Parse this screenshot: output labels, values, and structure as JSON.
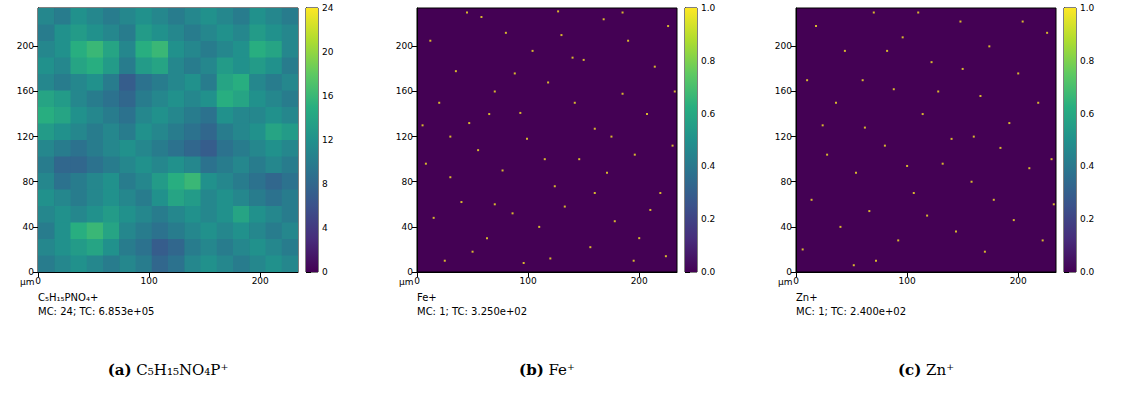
{
  "chart_data": [
    {
      "type": "heatmap",
      "label": "(a)",
      "caption": "C₅H₁₅NO₄P⁺",
      "title": "C₅H₁₅PNO₄+",
      "stats": "MC: 24; TC: 6.853e+05",
      "xlabel": "µm",
      "xlim": [
        0,
        234
      ],
      "ylim": [
        0,
        234
      ],
      "xticks": [
        0,
        100,
        200
      ],
      "yticks": [
        0,
        40,
        80,
        120,
        160,
        200
      ],
      "cells": [
        [
          11,
          10,
          12,
          11,
          10,
          11,
          12,
          11,
          10,
          11,
          12,
          11,
          10,
          12,
          11,
          10
        ],
        [
          10,
          12,
          13,
          12,
          11,
          10,
          13,
          12,
          11,
          10,
          11,
          12,
          11,
          13,
          12,
          11
        ],
        [
          11,
          12,
          15,
          16,
          14,
          11,
          15,
          16,
          12,
          11,
          10,
          11,
          12,
          15,
          14,
          11
        ],
        [
          12,
          11,
          14,
          15,
          13,
          10,
          13,
          14,
          11,
          10,
          11,
          13,
          12,
          13,
          12,
          10
        ],
        [
          11,
          10,
          11,
          12,
          10,
          7,
          9,
          10,
          11,
          12,
          10,
          14,
          15,
          11,
          10,
          11
        ],
        [
          14,
          13,
          11,
          10,
          9,
          8,
          10,
          11,
          12,
          11,
          12,
          15,
          14,
          12,
          11,
          10
        ],
        [
          15,
          14,
          12,
          11,
          10,
          9,
          11,
          12,
          11,
          10,
          9,
          12,
          11,
          11,
          12,
          11
        ],
        [
          13,
          12,
          11,
          10,
          11,
          10,
          12,
          11,
          10,
          9,
          8,
          10,
          11,
          12,
          14,
          13
        ],
        [
          11,
          10,
          9,
          10,
          11,
          12,
          11,
          10,
          9,
          8,
          7,
          9,
          10,
          11,
          12,
          11
        ],
        [
          10,
          8,
          8,
          9,
          10,
          11,
          12,
          11,
          12,
          11,
          9,
          10,
          11,
          10,
          11,
          10
        ],
        [
          11,
          9,
          10,
          11,
          12,
          10,
          11,
          13,
          15,
          16,
          12,
          11,
          10,
          9,
          8,
          9
        ],
        [
          12,
          11,
          10,
          11,
          12,
          11,
          10,
          12,
          14,
          13,
          11,
          12,
          11,
          10,
          9,
          10
        ],
        [
          11,
          12,
          11,
          12,
          13,
          12,
          11,
          10,
          11,
          12,
          11,
          12,
          14,
          12,
          11,
          10
        ],
        [
          10,
          12,
          15,
          16,
          14,
          11,
          10,
          9,
          10,
          11,
          12,
          11,
          12,
          11,
          10,
          11
        ],
        [
          11,
          12,
          13,
          14,
          12,
          10,
          9,
          7,
          8,
          10,
          11,
          10,
          11,
          12,
          11,
          10
        ],
        [
          10,
          11,
          12,
          11,
          10,
          11,
          10,
          8,
          9,
          11,
          12,
          11,
          10,
          11,
          12,
          11
        ]
      ],
      "colorbar": {
        "range": [
          0,
          24
        ],
        "ticks": [
          0,
          4,
          8,
          12,
          16,
          20,
          24
        ]
      }
    },
    {
      "type": "heatmap",
      "label": "(b)",
      "caption": "Fe⁺",
      "title": "Fe+",
      "stats": "MC: 1; TC: 3.250e+02",
      "xlabel": "µm",
      "xlim": [
        0,
        234
      ],
      "ylim": [
        0,
        234
      ],
      "xticks": [
        0,
        100,
        200
      ],
      "yticks": [
        0,
        40,
        80,
        120,
        160,
        200
      ],
      "points": [
        [
          12,
          205,
          1
        ],
        [
          35,
          178,
          1
        ],
        [
          58,
          226,
          1
        ],
        [
          80,
          212,
          1
        ],
        [
          104,
          196,
          1
        ],
        [
          127,
          231,
          1
        ],
        [
          150,
          188,
          1
        ],
        [
          168,
          224,
          1
        ],
        [
          190,
          205,
          1
        ],
        [
          214,
          182,
          1
        ],
        [
          226,
          218,
          1
        ],
        [
          20,
          150,
          1
        ],
        [
          47,
          132,
          1
        ],
        [
          70,
          160,
          1
        ],
        [
          93,
          141,
          1
        ],
        [
          118,
          168,
          1
        ],
        [
          142,
          150,
          1
        ],
        [
          160,
          127,
          1
        ],
        [
          185,
          158,
          1
        ],
        [
          207,
          140,
          1
        ],
        [
          230,
          112,
          1
        ],
        [
          8,
          96,
          1
        ],
        [
          30,
          84,
          1
        ],
        [
          55,
          108,
          1
        ],
        [
          77,
          90,
          1
        ],
        [
          99,
          118,
          1
        ],
        [
          124,
          76,
          1
        ],
        [
          146,
          100,
          1
        ],
        [
          171,
          88,
          1
        ],
        [
          196,
          104,
          1
        ],
        [
          219,
          70,
          1
        ],
        [
          15,
          48,
          1
        ],
        [
          40,
          62,
          1
        ],
        [
          63,
          30,
          1
        ],
        [
          86,
          52,
          1
        ],
        [
          110,
          40,
          1
        ],
        [
          133,
          58,
          1
        ],
        [
          156,
          22,
          1
        ],
        [
          178,
          45,
          1
        ],
        [
          200,
          30,
          1
        ],
        [
          224,
          14,
          1
        ],
        [
          25,
          10,
          1
        ],
        [
          50,
          18,
          1
        ],
        [
          96,
          8,
          1
        ],
        [
          120,
          12,
          1
        ],
        [
          140,
          190,
          1
        ],
        [
          65,
          140,
          1
        ],
        [
          175,
          120,
          1
        ],
        [
          210,
          55,
          1
        ],
        [
          88,
          176,
          1
        ],
        [
          45,
          230,
          1
        ],
        [
          160,
          70,
          1
        ],
        [
          5,
          130,
          1
        ],
        [
          232,
          160,
          1
        ],
        [
          115,
          100,
          1
        ],
        [
          195,
          10,
          1
        ],
        [
          70,
          60,
          1
        ],
        [
          130,
          210,
          1
        ],
        [
          30,
          120,
          1
        ],
        [
          185,
          230,
          1
        ]
      ],
      "colorbar": {
        "range": [
          0,
          1
        ],
        "ticks": [
          {
            "value": 0,
            "label": "0.0"
          },
          0.2,
          0.4,
          0.6,
          0.8,
          {
            "value": 1,
            "label": "1.0"
          }
        ]
      }
    },
    {
      "type": "heatmap",
      "label": "(c)",
      "caption": "Zn⁺",
      "title": "Zn+",
      "stats": "MC: 1; TC: 2.400e+02",
      "xlabel": "µm",
      "xlim": [
        0,
        234
      ],
      "ylim": [
        0,
        234
      ],
      "xticks": [
        0,
        100,
        200
      ],
      "yticks": [
        0,
        40,
        80,
        120,
        160,
        200
      ],
      "points": [
        [
          18,
          218,
          1
        ],
        [
          44,
          196,
          1
        ],
        [
          70,
          230,
          1
        ],
        [
          96,
          208,
          1
        ],
        [
          122,
          186,
          1
        ],
        [
          148,
          222,
          1
        ],
        [
          174,
          200,
          1
        ],
        [
          200,
          176,
          1
        ],
        [
          226,
          212,
          1
        ],
        [
          10,
          170,
          1
        ],
        [
          36,
          150,
          1
        ],
        [
          62,
          128,
          1
        ],
        [
          88,
          162,
          1
        ],
        [
          114,
          140,
          1
        ],
        [
          140,
          118,
          1
        ],
        [
          166,
          156,
          1
        ],
        [
          192,
          132,
          1
        ],
        [
          218,
          150,
          1
        ],
        [
          28,
          104,
          1
        ],
        [
          54,
          88,
          1
        ],
        [
          80,
          112,
          1
        ],
        [
          106,
          70,
          1
        ],
        [
          132,
          96,
          1
        ],
        [
          158,
          80,
          1
        ],
        [
          184,
          110,
          1
        ],
        [
          210,
          92,
          1
        ],
        [
          232,
          60,
          1
        ],
        [
          14,
          64,
          1
        ],
        [
          40,
          40,
          1
        ],
        [
          66,
          54,
          1
        ],
        [
          92,
          28,
          1
        ],
        [
          118,
          50,
          1
        ],
        [
          144,
          36,
          1
        ],
        [
          170,
          18,
          1
        ],
        [
          196,
          46,
          1
        ],
        [
          222,
          28,
          1
        ],
        [
          6,
          20,
          1
        ],
        [
          52,
          6,
          1
        ],
        [
          100,
          94,
          1
        ],
        [
          150,
          180,
          1
        ],
        [
          178,
          64,
          1
        ],
        [
          82,
          196,
          1
        ],
        [
          204,
          222,
          1
        ],
        [
          128,
          160,
          1
        ],
        [
          24,
          130,
          1
        ],
        [
          60,
          170,
          1
        ],
        [
          160,
          120,
          1
        ],
        [
          110,
          230,
          1
        ],
        [
          230,
          100,
          1
        ],
        [
          72,
          10,
          1
        ]
      ],
      "colorbar": {
        "range": [
          0,
          1
        ],
        "ticks": [
          {
            "value": 0,
            "label": "0.0"
          },
          0.2,
          0.4,
          0.6,
          0.8,
          {
            "value": 1,
            "label": "1.0"
          }
        ]
      }
    }
  ]
}
